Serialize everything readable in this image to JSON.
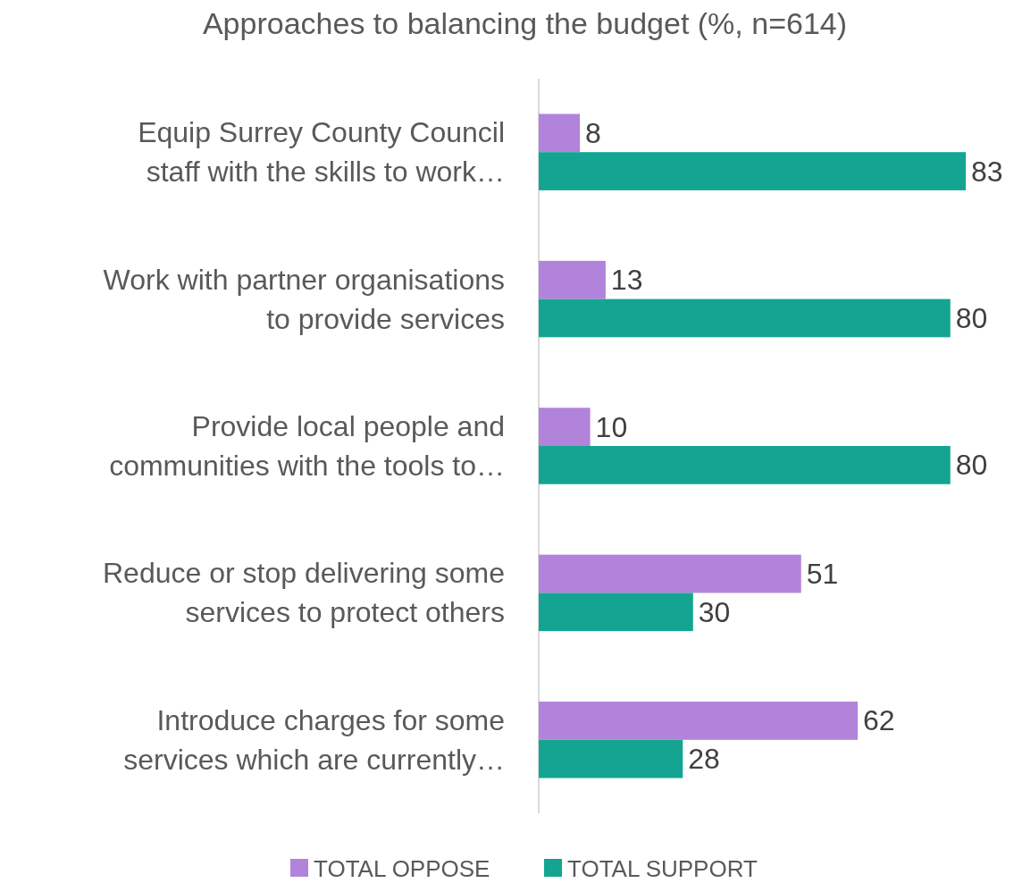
{
  "chart_data": {
    "type": "bar",
    "orientation": "horizontal",
    "title": "Approaches to balancing the budget (%, n=614)",
    "categories": [
      "Equip Surrey County Council staff with the skills to work…",
      "Work with partner organisations to provide services",
      "Provide local people and communities with the tools to…",
      "Reduce or stop delivering some services to protect others",
      "Introduce charges for some services which are currently…"
    ],
    "series": [
      {
        "name": "TOTAL OPPOSE",
        "color": "#b283db",
        "values": [
          8,
          13,
          10,
          51,
          62
        ]
      },
      {
        "name": "TOTAL SUPPORT",
        "color": "#13a592",
        "values": [
          83,
          80,
          80,
          30,
          28
        ]
      }
    ],
    "data_labels": true,
    "legend": "bottom"
  }
}
